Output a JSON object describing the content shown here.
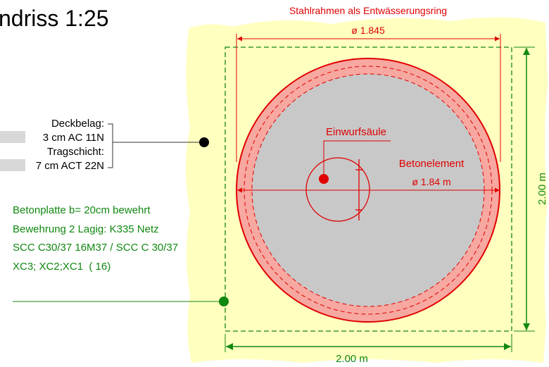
{
  "title": "ndriss 1:25",
  "frame_label": "Stahlrahmen als Entwässerungsring",
  "frame_diameter": "ø 1.845",
  "element_label": "Betonelement",
  "element_diameter": "ø 1.84 m",
  "inlet_label": "Einwurfsäule",
  "pavement": {
    "layers": [
      {
        "name": "Deckbelag:",
        "thickness": "3 cm",
        "material": "AC 11N"
      },
      {
        "name": "Tragschicht:",
        "thickness": "7 cm",
        "material": "ACT 22N"
      }
    ]
  },
  "slab_notes": [
    "Betonplatte b= 20cm bewehrt",
    "Bewehrung 2 Lagig: K335 Netz",
    "SCC C30/37 16M37 / SCC C 30/37",
    "XC3; XC2;XC1  ( 16)"
  ],
  "width_label": "2.00 m",
  "height_label": "2.00 m"
}
